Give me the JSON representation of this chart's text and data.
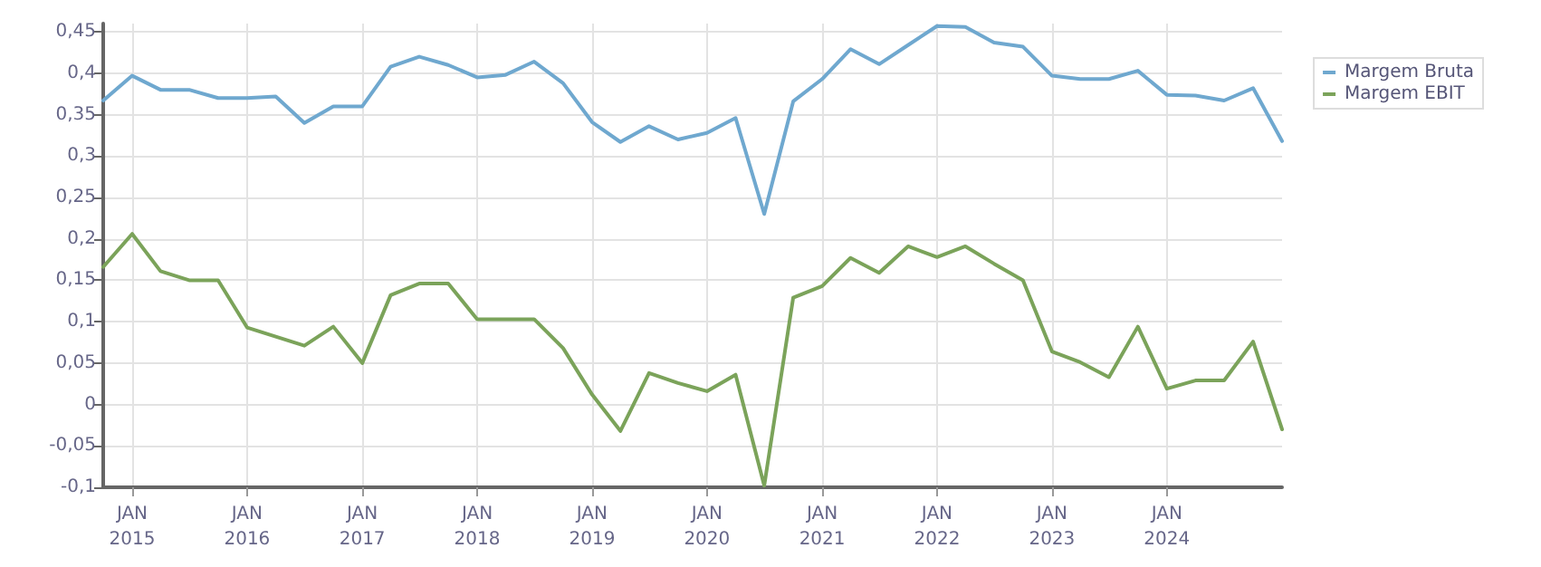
{
  "chart_data": {
    "type": "line",
    "x": [
      "2014-10",
      "2015-01",
      "2015-04",
      "2015-07",
      "2015-10",
      "2016-01",
      "2016-04",
      "2016-07",
      "2016-10",
      "2017-01",
      "2017-04",
      "2017-07",
      "2017-10",
      "2018-01",
      "2018-04",
      "2018-07",
      "2018-10",
      "2019-01",
      "2019-04",
      "2019-07",
      "2019-10",
      "2020-01",
      "2020-04",
      "2020-07",
      "2020-10",
      "2021-01",
      "2021-04",
      "2021-07",
      "2021-10",
      "2022-01",
      "2022-04",
      "2022-07",
      "2022-10",
      "2023-01",
      "2023-04",
      "2023-07",
      "2023-10",
      "2024-01",
      "2024-04",
      "2024-07",
      "2024-10",
      "2025-01"
    ],
    "series": [
      {
        "name": "Margem Bruta",
        "color": "#6fa8cf",
        "values": [
          0.367,
          0.397,
          0.38,
          0.38,
          0.37,
          0.37,
          0.372,
          0.34,
          0.36,
          0.36,
          0.408,
          0.42,
          0.41,
          0.395,
          0.398,
          0.414,
          0.388,
          0.341,
          0.317,
          0.336,
          0.32,
          0.328,
          0.346,
          0.23,
          0.366,
          0.393,
          0.429,
          0.411,
          0.434,
          0.457,
          0.456,
          0.437,
          0.432,
          0.397,
          0.393,
          0.393,
          0.403,
          0.374,
          0.373,
          0.367,
          0.382,
          0.318
        ]
      },
      {
        "name": "Margem EBIT",
        "color": "#7ba35a",
        "values": [
          0.166,
          0.206,
          0.161,
          0.15,
          0.15,
          0.093,
          0.082,
          0.071,
          0.094,
          0.05,
          0.132,
          0.146,
          0.146,
          0.103,
          0.103,
          0.103,
          0.068,
          0.012,
          -0.032,
          0.038,
          0.026,
          0.016,
          0.036,
          -0.098,
          0.129,
          0.143,
          0.177,
          0.159,
          0.191,
          0.178,
          0.191,
          0.17,
          0.15,
          0.064,
          0.051,
          0.033,
          0.094,
          0.019,
          0.029,
          0.029,
          0.076,
          -0.03
        ]
      }
    ],
    "xlim": [
      "2014-10",
      "2025-01"
    ],
    "xticks": [
      {
        "value": "2015-01",
        "label": "JAN\n2015"
      },
      {
        "value": "2016-01",
        "label": "JAN\n2016"
      },
      {
        "value": "2017-01",
        "label": "JAN\n2017"
      },
      {
        "value": "2018-01",
        "label": "JAN\n2018"
      },
      {
        "value": "2019-01",
        "label": "JAN\n2019"
      },
      {
        "value": "2020-01",
        "label": "JAN\n2020"
      },
      {
        "value": "2021-01",
        "label": "JAN\n2021"
      },
      {
        "value": "2022-01",
        "label": "JAN\n2022"
      },
      {
        "value": "2023-01",
        "label": "JAN\n2023"
      },
      {
        "value": "2024-01",
        "label": "JAN\n2024"
      }
    ],
    "ylim": [
      -0.1,
      0.46
    ],
    "yticks": [
      {
        "value": -0.1,
        "label": "-0,1"
      },
      {
        "value": -0.05,
        "label": "-0,05"
      },
      {
        "value": 0,
        "label": "0"
      },
      {
        "value": 0.05,
        "label": "0,05"
      },
      {
        "value": 0.1,
        "label": "0,1"
      },
      {
        "value": 0.15,
        "label": "0,15"
      },
      {
        "value": 0.2,
        "label": "0,2"
      },
      {
        "value": 0.25,
        "label": "0,25"
      },
      {
        "value": 0.3,
        "label": "0,3"
      },
      {
        "value": 0.35,
        "label": "0,35"
      },
      {
        "value": 0.4,
        "label": "0,4"
      },
      {
        "value": 0.45,
        "label": "0,45"
      }
    ],
    "grid": true,
    "legend": "top right",
    "marker": "none",
    "line_style": "solid"
  }
}
